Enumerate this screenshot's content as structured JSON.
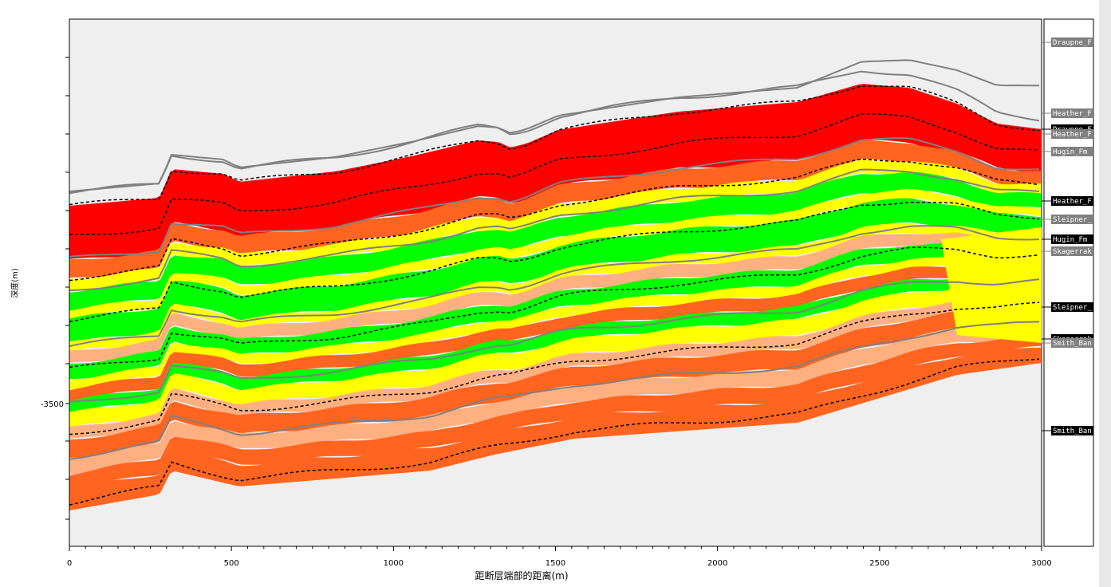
{
  "chart_data": {
    "type": "area",
    "title": "",
    "xlabel": "距断层端部的距离(m)",
    "ylabel": "深度(m)",
    "xlim": [
      0,
      3000
    ],
    "x_ticks": [
      "0",
      "500",
      "1000",
      "1500",
      "2000",
      "2500",
      "3000"
    ],
    "y_ticks": [
      "-3500"
    ],
    "grid": false,
    "facies_colors": [
      "#ff0000",
      "#ff6420",
      "#ffb080",
      "#ffff00",
      "#00ff00"
    ],
    "horizon_labels": [
      {
        "name": "Draupne_F",
        "style": "gray"
      },
      {
        "name": "Heather_F",
        "style": "gray"
      },
      {
        "name": "Draupne_F",
        "style": "black"
      },
      {
        "name": "Heather_F",
        "style": "gray"
      },
      {
        "name": "Hugin_Fm",
        "style": "gray"
      },
      {
        "name": "Heather_F",
        "style": "black"
      },
      {
        "name": "Sleipner_",
        "style": "gray"
      },
      {
        "name": "Hugin_Fm",
        "style": "black"
      },
      {
        "name": "Skagerrak",
        "style": "gray"
      },
      {
        "name": "Sleipner_",
        "style": "black"
      },
      {
        "name": "Skagerrak",
        "style": "black"
      },
      {
        "name": "Smith_Ban",
        "style": "gray"
      },
      {
        "name": "Smith_Ban",
        "style": "black"
      }
    ]
  }
}
